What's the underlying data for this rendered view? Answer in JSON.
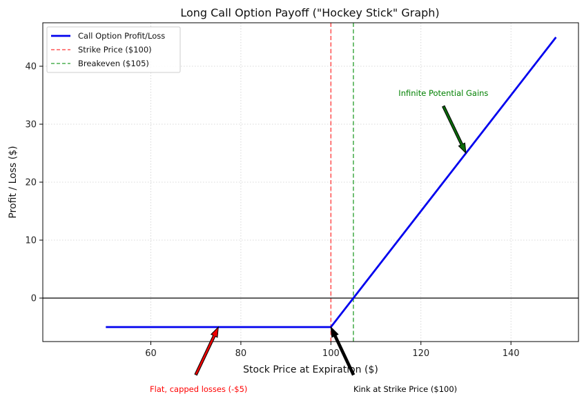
{
  "chart_data": {
    "type": "line",
    "title": "Long Call Option Payoff (\"Hockey Stick\" Graph)",
    "xlabel": "Stock Price at Expiration ($)",
    "ylabel": "Profit / Loss ($)",
    "xlim": [
      36,
      155
    ],
    "ylim": [
      -7.5,
      47.5
    ],
    "xticks": [
      60,
      80,
      100,
      120,
      140
    ],
    "yticks": [
      0,
      10,
      20,
      30,
      40
    ],
    "grid": true,
    "legend_position": "top-left",
    "series": [
      {
        "name": "Call Option Profit/Loss",
        "color": "#0000ee",
        "style": "solid",
        "x": [
          50,
          100,
          150
        ],
        "y": [
          -5,
          -5,
          45
        ]
      }
    ],
    "reference_lines": [
      {
        "name": "Strike Price ($100)",
        "orientation": "vertical",
        "value": 100,
        "color": "#ff5555",
        "style": "dashed"
      },
      {
        "name": "Breakeven ($105)",
        "orientation": "vertical",
        "value": 105,
        "color": "#4caf50",
        "style": "dashed"
      },
      {
        "name": "",
        "orientation": "horizontal",
        "value": 0,
        "color": "#000000",
        "style": "solid"
      }
    ],
    "annotations": [
      {
        "text": "Infinite Potential Gains",
        "color": "#008000",
        "arrow_color": "#0b6b0b",
        "target": [
          130,
          25
        ],
        "text_at": [
          125,
          35
        ]
      },
      {
        "text": "Flat, capped losses (-$5)",
        "color": "#ff0000",
        "arrow_color": "#ee0000",
        "target": [
          75,
          -5
        ],
        "text_at": [
          70,
          -15
        ]
      },
      {
        "text": "Kink at Strike Price ($100)",
        "color": "#000000",
        "arrow_color": "#000000",
        "target": [
          100,
          -5
        ],
        "text_at": [
          105,
          -15
        ]
      }
    ]
  }
}
